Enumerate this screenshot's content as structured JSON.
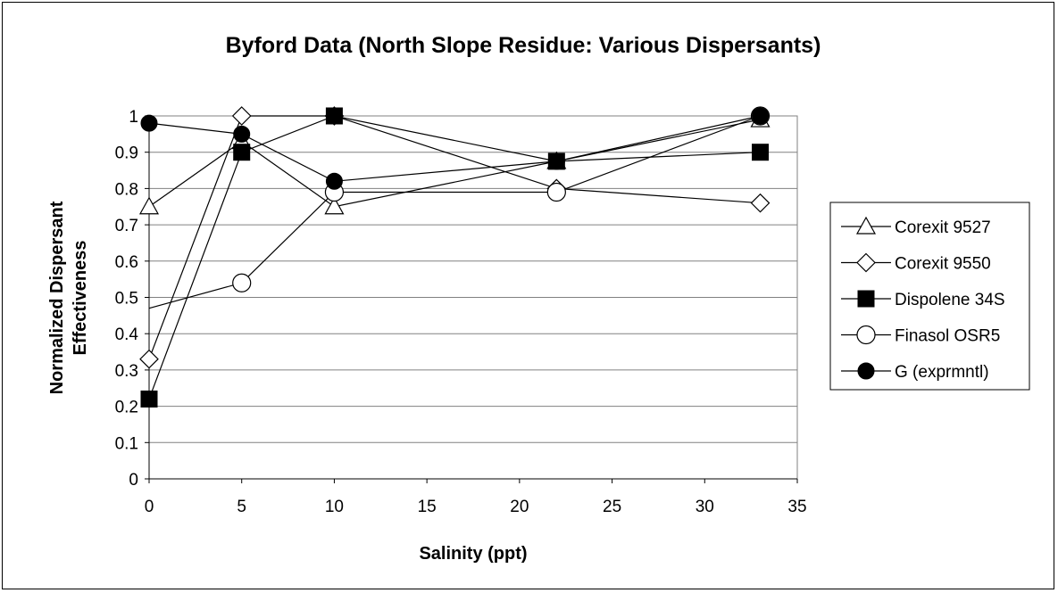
{
  "chart_data": {
    "type": "line",
    "title": "Byford Data (North Slope Residue: Various Dispersants)",
    "xlabel": "Salinity (ppt)",
    "ylabel_line1": "Normalized Dispersant",
    "ylabel_line2": "Effectiveness",
    "xlim": [
      0,
      35
    ],
    "ylim": [
      0,
      1
    ],
    "x_ticks": [
      "0",
      "5",
      "10",
      "15",
      "20",
      "25",
      "30",
      "35"
    ],
    "y_ticks": [
      "0",
      "0.1",
      "0.2",
      "0.3",
      "0.4",
      "0.5",
      "0.6",
      "0.7",
      "0.8",
      "0.9",
      "1"
    ],
    "grid": "horizontal",
    "legend_position": "right",
    "series": [
      {
        "name": "Corexit 9527",
        "marker": "triangle-open",
        "points": [
          [
            0,
            0.75
          ],
          [
            5,
            0.93
          ],
          [
            10,
            0.75
          ],
          [
            22,
            0.875
          ],
          [
            33,
            0.99
          ]
        ]
      },
      {
        "name": "Corexit 9550",
        "marker": "diamond-open",
        "points": [
          [
            0,
            0.33
          ],
          [
            5,
            1.0
          ],
          [
            10,
            1.0
          ],
          [
            22,
            0.8
          ],
          [
            33,
            0.76
          ]
        ]
      },
      {
        "name": "Dispolene 34S",
        "marker": "square-filled",
        "points": [
          [
            0,
            0.22
          ],
          [
            5,
            0.9
          ],
          [
            10,
            1.0
          ],
          [
            22,
            0.875
          ],
          [
            33,
            0.9
          ]
        ]
      },
      {
        "name": "Finasol OSR5",
        "marker": "circle-open",
        "line_start": [
          0,
          0.47
        ],
        "points": [
          [
            5,
            0.54
          ],
          [
            10,
            0.79
          ],
          [
            22,
            0.79
          ],
          [
            33,
            1.0
          ]
        ]
      },
      {
        "name": "G (exprmntl)",
        "marker": "circle-filled",
        "points": [
          [
            0,
            0.98
          ],
          [
            5,
            0.95
          ],
          [
            10,
            0.82
          ],
          [
            22,
            0.875
          ],
          [
            33,
            1.0
          ]
        ]
      }
    ]
  }
}
